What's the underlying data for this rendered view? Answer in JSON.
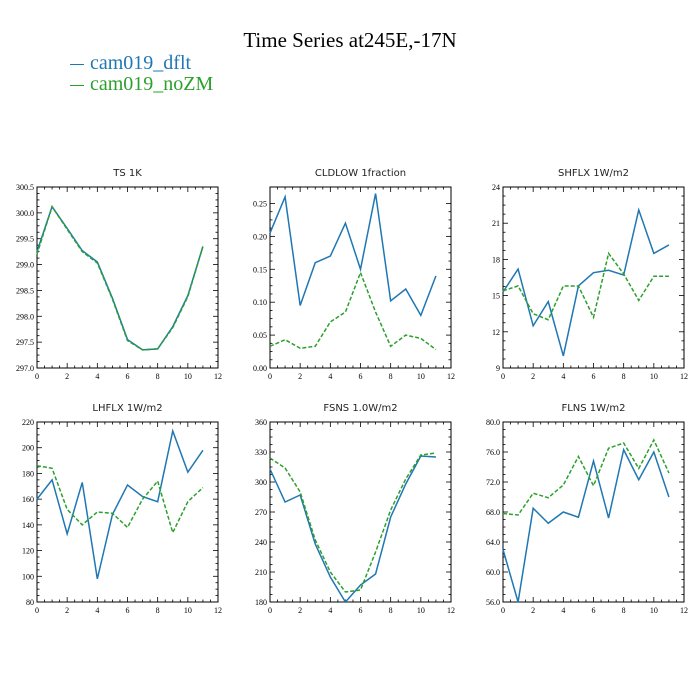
{
  "page": {
    "title": "Time Series at245E,-17N"
  },
  "legend": [
    {
      "name": "cam019_dflt",
      "color": "#1f77b4"
    },
    {
      "name": "cam019_noZM",
      "color": "#2ca02c"
    }
  ],
  "chart_data": [
    {
      "type": "line",
      "title": "TS   1K",
      "x": [
        0,
        1,
        2,
        3,
        4,
        5,
        6,
        7,
        8,
        9,
        10,
        11
      ],
      "xlim": [
        0,
        12
      ],
      "xticks": [
        0,
        2,
        4,
        6,
        8,
        10,
        12
      ],
      "ylim": [
        297.0,
        300.5
      ],
      "yticks": [
        297.0,
        297.5,
        298.0,
        298.5,
        299.0,
        299.5,
        300.0,
        300.5
      ],
      "ytick_labels": [
        "297.0",
        "297.5",
        "298.0",
        "298.5",
        "299.0",
        "299.5",
        "300.0",
        "300.5"
      ],
      "series": [
        {
          "name": "cam019_dflt",
          "values": [
            299.25,
            300.12,
            299.7,
            299.27,
            299.05,
            298.35,
            297.55,
            297.35,
            297.37,
            297.8,
            298.4,
            299.35
          ]
        },
        {
          "name": "cam019_noZM",
          "values": [
            299.2,
            300.12,
            299.68,
            299.25,
            299.03,
            298.33,
            297.53,
            297.35,
            297.37,
            297.78,
            298.38,
            299.35
          ]
        }
      ]
    },
    {
      "type": "line",
      "title": "CLDLOW   1fraction",
      "x": [
        0,
        1,
        2,
        3,
        4,
        5,
        6,
        7,
        8,
        9,
        10,
        11
      ],
      "xlim": [
        0,
        12
      ],
      "xticks": [
        0,
        2,
        4,
        6,
        8,
        10,
        12
      ],
      "ylim": [
        0.0,
        0.275
      ],
      "yticks": [
        0.0,
        0.05,
        0.1,
        0.15,
        0.2,
        0.25
      ],
      "ytick_labels": [
        "0.00",
        "0.05",
        "0.10",
        "0.15",
        "0.20",
        "0.25"
      ],
      "series": [
        {
          "name": "cam019_dflt",
          "values": [
            0.205,
            0.26,
            0.095,
            0.16,
            0.17,
            0.22,
            0.15,
            0.265,
            0.102,
            0.12,
            0.08,
            0.14
          ]
        },
        {
          "name": "cam019_noZM",
          "values": [
            0.033,
            0.043,
            0.03,
            0.033,
            0.07,
            0.085,
            0.145,
            0.085,
            0.033,
            0.05,
            0.045,
            0.028
          ]
        }
      ]
    },
    {
      "type": "line",
      "title": "SHFLX   1W/m2",
      "x": [
        0,
        1,
        2,
        3,
        4,
        5,
        6,
        7,
        8,
        9,
        10,
        11
      ],
      "xlim": [
        0,
        12
      ],
      "xticks": [
        0,
        2,
        4,
        6,
        8,
        10,
        12
      ],
      "ylim": [
        9,
        24
      ],
      "yticks": [
        9,
        12,
        15,
        18,
        21,
        24
      ],
      "ytick_labels": [
        "9",
        "12",
        "15",
        "18",
        "21",
        "24"
      ],
      "series": [
        {
          "name": "cam019_dflt",
          "values": [
            15.3,
            17.2,
            12.5,
            14.5,
            10.0,
            15.8,
            16.9,
            17.1,
            16.7,
            22.1,
            18.5,
            19.2
          ]
        },
        {
          "name": "cam019_noZM",
          "values": [
            15.4,
            15.8,
            13.5,
            13.0,
            15.8,
            15.8,
            13.2,
            18.5,
            16.8,
            14.6,
            16.6,
            16.6
          ]
        }
      ]
    },
    {
      "type": "line",
      "title": "LHFLX   1W/m2",
      "x": [
        0,
        1,
        2,
        3,
        4,
        5,
        6,
        7,
        8,
        9,
        10,
        11
      ],
      "xlim": [
        0,
        12
      ],
      "xticks": [
        0,
        2,
        4,
        6,
        8,
        10,
        12
      ],
      "ylim": [
        80,
        220
      ],
      "yticks": [
        80,
        100,
        120,
        140,
        160,
        180,
        200,
        220
      ],
      "ytick_labels": [
        "80",
        "100",
        "120",
        "140",
        "160",
        "180",
        "200",
        "220"
      ],
      "series": [
        {
          "name": "cam019_dflt",
          "values": [
            160,
            175,
            133,
            173,
            98,
            148,
            171,
            162,
            158,
            213,
            181,
            198
          ]
        },
        {
          "name": "cam019_noZM",
          "values": [
            186,
            184,
            152,
            140,
            150,
            149,
            138,
            160,
            174,
            134,
            158,
            169
          ]
        }
      ]
    },
    {
      "type": "line",
      "title": "FSNS   1.0W/m2",
      "x": [
        0,
        1,
        2,
        3,
        4,
        5,
        6,
        7,
        8,
        9,
        10,
        11
      ],
      "xlim": [
        0,
        12
      ],
      "xticks": [
        0,
        2,
        4,
        6,
        8,
        10,
        12
      ],
      "ylim": [
        180,
        360
      ],
      "yticks": [
        180,
        210,
        240,
        270,
        300,
        330,
        360
      ],
      "ytick_labels": [
        "180",
        "210",
        "240",
        "270",
        "300",
        "330",
        "360"
      ],
      "series": [
        {
          "name": "cam019_dflt",
          "values": [
            313,
            280,
            287,
            238,
            205,
            180,
            197,
            208,
            265,
            298,
            326,
            325
          ]
        },
        {
          "name": "cam019_noZM",
          "values": [
            324,
            314,
            290,
            242,
            210,
            190,
            192,
            230,
            272,
            303,
            327,
            329
          ]
        }
      ]
    },
    {
      "type": "line",
      "title": "FLNS   1W/m2",
      "x": [
        0,
        1,
        2,
        3,
        4,
        5,
        6,
        7,
        8,
        9,
        10,
        11
      ],
      "xlim": [
        0,
        12
      ],
      "xticks": [
        0,
        2,
        4,
        6,
        8,
        10,
        12
      ],
      "ylim": [
        56.0,
        80.0
      ],
      "yticks": [
        56.0,
        60.0,
        64.0,
        68.0,
        72.0,
        76.0,
        80.0
      ],
      "ytick_labels": [
        "56.0",
        "60.0",
        "64.0",
        "68.0",
        "72.0",
        "76.0",
        "80.0"
      ],
      "series": [
        {
          "name": "cam019_dflt",
          "values": [
            63.0,
            55.8,
            68.5,
            66.5,
            68.0,
            67.3,
            74.8,
            67.2,
            76.3,
            72.3,
            76.0,
            70.0
          ]
        },
        {
          "name": "cam019_noZM",
          "values": [
            67.8,
            67.6,
            70.5,
            69.9,
            71.6,
            75.4,
            71.5,
            76.5,
            77.2,
            73.8,
            77.6,
            73.2
          ]
        }
      ]
    }
  ]
}
